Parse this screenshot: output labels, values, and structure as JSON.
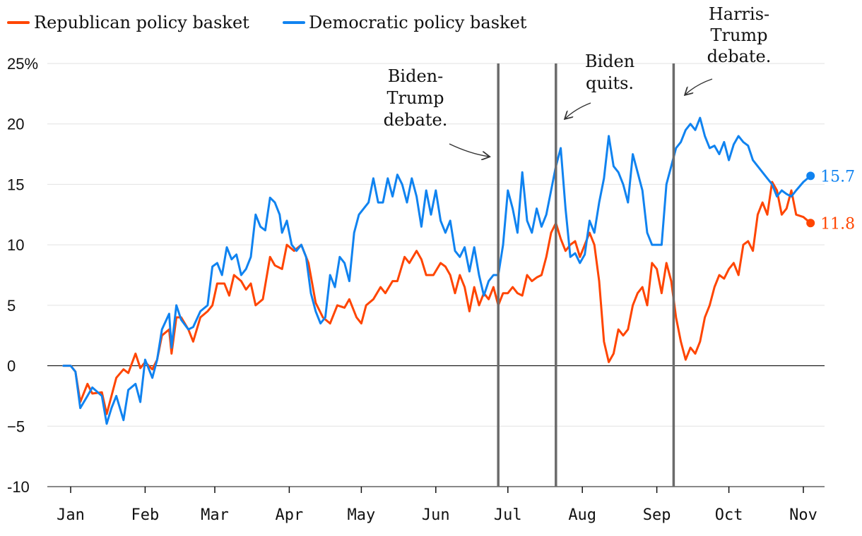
{
  "chart_data": {
    "type": "line",
    "title": "",
    "xlabel": "",
    "ylabel": "",
    "ylim": [
      -10,
      25
    ],
    "yticks": [
      -10,
      -5,
      0,
      5,
      10,
      15,
      20,
      25
    ],
    "ytick_labels": [
      "-10",
      "−5",
      "0",
      "5",
      "10",
      "15",
      "20",
      "25%"
    ],
    "xlim": [
      1,
      311
    ],
    "xticks": [
      {
        "day": 1,
        "label": "Jan"
      },
      {
        "day": 32,
        "label": "Feb"
      },
      {
        "day": 61,
        "label": "Mar"
      },
      {
        "day": 92,
        "label": "Apr"
      },
      {
        "day": 122,
        "label": "May"
      },
      {
        "day": 153,
        "label": "Jun"
      },
      {
        "day": 183,
        "label": "Jul"
      },
      {
        "day": 214,
        "label": "Aug"
      },
      {
        "day": 245,
        "label": "Sep"
      },
      {
        "day": 275,
        "label": "Oct"
      },
      {
        "day": 306,
        "label": "Nov"
      }
    ],
    "x_unit": "day of year 2024",
    "series": [
      {
        "name": "Republican policy basket",
        "color": "#ff4500",
        "end_value": 11.8,
        "end_label": "11.8",
        "points": [
          [
            -2,
            0
          ],
          [
            1,
            0
          ],
          [
            3,
            -0.5
          ],
          [
            5,
            -3
          ],
          [
            8,
            -1.5
          ],
          [
            10,
            -2.3
          ],
          [
            14,
            -2.2
          ],
          [
            16,
            -4
          ],
          [
            18,
            -2.5
          ],
          [
            20,
            -1
          ],
          [
            23,
            -0.3
          ],
          [
            25,
            -0.6
          ],
          [
            28,
            1
          ],
          [
            30,
            -0.2
          ],
          [
            32,
            0.3
          ],
          [
            35,
            -0.3
          ],
          [
            37,
            0.5
          ],
          [
            39,
            2.5
          ],
          [
            42,
            3
          ],
          [
            43,
            1
          ],
          [
            45,
            4
          ],
          [
            47,
            4
          ],
          [
            50,
            3
          ],
          [
            52,
            2
          ],
          [
            55,
            4
          ],
          [
            58,
            4.5
          ],
          [
            60,
            5
          ],
          [
            62,
            6.8
          ],
          [
            65,
            6.8
          ],
          [
            67,
            5.8
          ],
          [
            69,
            7.5
          ],
          [
            72,
            7
          ],
          [
            74,
            6.3
          ],
          [
            76,
            6.8
          ],
          [
            78,
            5
          ],
          [
            81,
            5.5
          ],
          [
            84,
            9
          ],
          [
            86,
            8.3
          ],
          [
            89,
            8
          ],
          [
            91,
            10
          ],
          [
            94,
            9.5
          ],
          [
            97,
            10
          ],
          [
            100,
            8.5
          ],
          [
            103,
            5.2
          ],
          [
            106,
            4
          ],
          [
            109,
            3.5
          ],
          [
            112,
            5
          ],
          [
            115,
            4.8
          ],
          [
            117,
            5.5
          ],
          [
            120,
            4
          ],
          [
            122,
            3.5
          ],
          [
            124,
            5
          ],
          [
            127,
            5.5
          ],
          [
            130,
            6.5
          ],
          [
            132,
            6
          ],
          [
            135,
            7
          ],
          [
            137,
            7
          ],
          [
            140,
            9
          ],
          [
            142,
            8.5
          ],
          [
            145,
            9.5
          ],
          [
            147,
            8.8
          ],
          [
            149,
            7.5
          ],
          [
            152,
            7.5
          ],
          [
            155,
            8.5
          ],
          [
            157,
            8.2
          ],
          [
            159,
            7.5
          ],
          [
            161,
            6
          ],
          [
            163,
            7.5
          ],
          [
            165,
            6.5
          ],
          [
            167,
            4.5
          ],
          [
            169,
            6.5
          ],
          [
            171,
            5
          ],
          [
            173,
            6
          ],
          [
            175,
            5.5
          ],
          [
            177,
            6.5
          ],
          [
            179,
            5
          ],
          [
            181,
            6
          ],
          [
            183,
            6
          ],
          [
            185,
            6.5
          ],
          [
            187,
            6
          ],
          [
            189,
            5.8
          ],
          [
            191,
            7.5
          ],
          [
            193,
            7
          ],
          [
            195,
            7.3
          ],
          [
            197,
            7.5
          ],
          [
            199,
            9
          ],
          [
            201,
            11
          ],
          [
            203,
            11.8
          ],
          [
            205,
            10.5
          ],
          [
            207,
            9.5
          ],
          [
            209,
            10
          ],
          [
            211,
            10.3
          ],
          [
            213,
            9
          ],
          [
            215,
            10
          ],
          [
            217,
            11
          ],
          [
            219,
            10
          ],
          [
            221,
            7
          ],
          [
            223,
            2
          ],
          [
            225,
            0.3
          ],
          [
            227,
            1
          ],
          [
            229,
            3
          ],
          [
            231,
            2.5
          ],
          [
            233,
            3
          ],
          [
            235,
            5
          ],
          [
            237,
            6
          ],
          [
            239,
            6.5
          ],
          [
            241,
            5
          ],
          [
            243,
            8.5
          ],
          [
            245,
            8
          ],
          [
            247,
            6
          ],
          [
            249,
            8.5
          ],
          [
            251,
            7
          ],
          [
            253,
            4
          ],
          [
            255,
            2
          ],
          [
            257,
            0.5
          ],
          [
            259,
            1.5
          ],
          [
            261,
            1
          ],
          [
            263,
            2
          ],
          [
            265,
            4
          ],
          [
            267,
            5
          ],
          [
            269,
            6.5
          ],
          [
            271,
            7.5
          ],
          [
            273,
            7.2
          ],
          [
            275,
            8
          ],
          [
            277,
            8.5
          ],
          [
            279,
            7.5
          ],
          [
            281,
            10
          ],
          [
            283,
            10.3
          ],
          [
            285,
            9.5
          ],
          [
            287,
            12.5
          ],
          [
            289,
            13.5
          ],
          [
            291,
            12.5
          ],
          [
            293,
            15.2
          ],
          [
            295,
            14.5
          ],
          [
            297,
            12.5
          ],
          [
            299,
            13
          ],
          [
            301,
            14.5
          ],
          [
            303,
            12.5
          ],
          [
            306,
            12.3
          ],
          [
            309,
            11.8
          ]
        ]
      },
      {
        "name": "Democratic policy basket",
        "color": "#1083f0",
        "end_value": 15.7,
        "end_label": "15.7",
        "points": [
          [
            -2,
            0
          ],
          [
            1,
            0
          ],
          [
            3,
            -0.5
          ],
          [
            5,
            -3.5
          ],
          [
            8,
            -2.5
          ],
          [
            10,
            -1.8
          ],
          [
            14,
            -2.5
          ],
          [
            16,
            -4.8
          ],
          [
            18,
            -3.5
          ],
          [
            20,
            -2.5
          ],
          [
            23,
            -4.5
          ],
          [
            25,
            -2
          ],
          [
            28,
            -1.5
          ],
          [
            30,
            -3
          ],
          [
            32,
            0.5
          ],
          [
            35,
            -1
          ],
          [
            37,
            0.5
          ],
          [
            39,
            3
          ],
          [
            42,
            4.3
          ],
          [
            43,
            1.5
          ],
          [
            45,
            5
          ],
          [
            47,
            3.8
          ],
          [
            50,
            3
          ],
          [
            52,
            3.2
          ],
          [
            55,
            4.5
          ],
          [
            58,
            5
          ],
          [
            60,
            8.2
          ],
          [
            62,
            8.5
          ],
          [
            64,
            7.5
          ],
          [
            66,
            9.8
          ],
          [
            68,
            8.8
          ],
          [
            70,
            9.2
          ],
          [
            72,
            7.5
          ],
          [
            74,
            8
          ],
          [
            76,
            9
          ],
          [
            78,
            12.5
          ],
          [
            80,
            11.5
          ],
          [
            82,
            11.2
          ],
          [
            84,
            13.9
          ],
          [
            86,
            13.5
          ],
          [
            88,
            12.5
          ],
          [
            89,
            11
          ],
          [
            91,
            12
          ],
          [
            93,
            10
          ],
          [
            95,
            9.5
          ],
          [
            97,
            10
          ],
          [
            99,
            9
          ],
          [
            101,
            6
          ],
          [
            103,
            4.5
          ],
          [
            105,
            3.5
          ],
          [
            107,
            4
          ],
          [
            109,
            7.5
          ],
          [
            111,
            6.5
          ],
          [
            113,
            9
          ],
          [
            115,
            8.5
          ],
          [
            117,
            7
          ],
          [
            119,
            11
          ],
          [
            121,
            12.5
          ],
          [
            123,
            13
          ],
          [
            125,
            13.5
          ],
          [
            127,
            15.5
          ],
          [
            129,
            13.5
          ],
          [
            131,
            13.5
          ],
          [
            133,
            15.5
          ],
          [
            135,
            14
          ],
          [
            137,
            15.8
          ],
          [
            139,
            15
          ],
          [
            141,
            13.5
          ],
          [
            143,
            15.5
          ],
          [
            145,
            14
          ],
          [
            147,
            11.5
          ],
          [
            149,
            14.5
          ],
          [
            151,
            12.5
          ],
          [
            153,
            14.5
          ],
          [
            155,
            12
          ],
          [
            157,
            11
          ],
          [
            159,
            12
          ],
          [
            161,
            9.5
          ],
          [
            163,
            9
          ],
          [
            165,
            9.8
          ],
          [
            167,
            7.8
          ],
          [
            169,
            9.8
          ],
          [
            171,
            7.5
          ],
          [
            173,
            5.8
          ],
          [
            175,
            7
          ],
          [
            177,
            7.5
          ],
          [
            179,
            7.5
          ],
          [
            181,
            10
          ],
          [
            183,
            14.5
          ],
          [
            185,
            13
          ],
          [
            187,
            11
          ],
          [
            189,
            16
          ],
          [
            191,
            12
          ],
          [
            193,
            11
          ],
          [
            195,
            13
          ],
          [
            197,
            11.5
          ],
          [
            199,
            12.5
          ],
          [
            201,
            14.5
          ],
          [
            203,
            16.5
          ],
          [
            205,
            18
          ],
          [
            207,
            13
          ],
          [
            209,
            9
          ],
          [
            211,
            9.3
          ],
          [
            213,
            8.5
          ],
          [
            215,
            9.2
          ],
          [
            217,
            12
          ],
          [
            219,
            11
          ],
          [
            221,
            13.5
          ],
          [
            223,
            15.5
          ],
          [
            225,
            19
          ],
          [
            227,
            16.5
          ],
          [
            229,
            16
          ],
          [
            231,
            15
          ],
          [
            233,
            13.5
          ],
          [
            235,
            17.5
          ],
          [
            237,
            16
          ],
          [
            239,
            14.5
          ],
          [
            241,
            11
          ],
          [
            243,
            10
          ],
          [
            245,
            10
          ],
          [
            247,
            10
          ],
          [
            249,
            15
          ],
          [
            251,
            16.5
          ],
          [
            253,
            18
          ],
          [
            255,
            18.5
          ],
          [
            257,
            19.5
          ],
          [
            259,
            20
          ],
          [
            261,
            19.5
          ],
          [
            263,
            20.5
          ],
          [
            265,
            19
          ],
          [
            267,
            18
          ],
          [
            269,
            18.2
          ],
          [
            271,
            17.5
          ],
          [
            273,
            18.5
          ],
          [
            275,
            17
          ],
          [
            277,
            18.3
          ],
          [
            279,
            19
          ],
          [
            281,
            18.5
          ],
          [
            283,
            18.2
          ],
          [
            285,
            17
          ],
          [
            287,
            16.5
          ],
          [
            289,
            16
          ],
          [
            291,
            15.5
          ],
          [
            293,
            15
          ],
          [
            295,
            14
          ],
          [
            297,
            14.5
          ],
          [
            299,
            14.2
          ],
          [
            301,
            14
          ],
          [
            303,
            14.5
          ],
          [
            306,
            15.2
          ],
          [
            309,
            15.7
          ]
        ]
      }
    ],
    "annotations": [
      {
        "day": 179,
        "lines": [
          "Biden-",
          "Trump",
          "debate."
        ]
      },
      {
        "day": 203,
        "lines": [
          "Biden",
          "quits."
        ]
      },
      {
        "day": 252,
        "lines": [
          "Harris-",
          "Trump",
          "debate."
        ]
      }
    ]
  }
}
